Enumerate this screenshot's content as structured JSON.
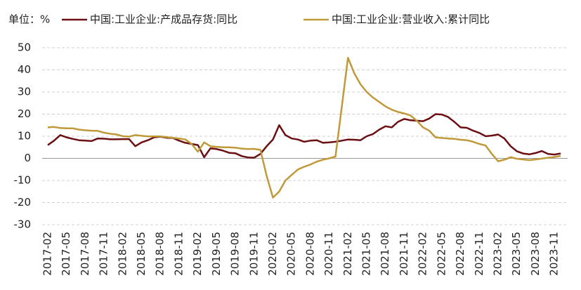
{
  "chart_data": {
    "type": "line",
    "unit_label": "单位：%",
    "categories": [
      "2017-02",
      null,
      null,
      "2017-05",
      null,
      null,
      "2017-08",
      null,
      null,
      "2017-11",
      null,
      null,
      "2018-02",
      null,
      null,
      "2018-05",
      null,
      null,
      "2018-08",
      null,
      null,
      "2018-11",
      null,
      null,
      "2019-02",
      null,
      null,
      "2019-05",
      null,
      null,
      "2019-08",
      null,
      null,
      "2019-11",
      null,
      null,
      "2020-02",
      null,
      null,
      "2020-05",
      null,
      null,
      "2020-08",
      null,
      null,
      "2020-11",
      null,
      null,
      "2021-02",
      null,
      null,
      "2021-05",
      null,
      null,
      "2021-08",
      null,
      null,
      "2021-11",
      null,
      null,
      "2022-02",
      null,
      null,
      "2022-05",
      null,
      null,
      "2022-08",
      null,
      null,
      "2022-11",
      null,
      null,
      "2023-02",
      null,
      null,
      "2023-05",
      null,
      null,
      "2023-08",
      null,
      null,
      "2023-11",
      null
    ],
    "series": [
      {
        "name": "中国:工业企业:产成品存货:同比",
        "color": "#6b0f12",
        "values": [
          6,
          8,
          10.5,
          9.5,
          8.8,
          8.2,
          8.0,
          7.8,
          9,
          8.9,
          8.6,
          8.6,
          8.7,
          8.7,
          5.5,
          7.2,
          8.2,
          9.5,
          9.8,
          9.3,
          9.2,
          8.0,
          7.0,
          6.5,
          6.0,
          0.5,
          4.5,
          4.2,
          3.5,
          2.5,
          2.3,
          1.0,
          0.4,
          0.3,
          2.0,
          5.5,
          8.5,
          15,
          10.5,
          9,
          8.5,
          7.5,
          8,
          8.2,
          7,
          7.2,
          7.5,
          8,
          8.5,
          8.4,
          8.2,
          10,
          11,
          13,
          14.5,
          14,
          16.5,
          17.8,
          17.2,
          17,
          16.8,
          18,
          20,
          19.8,
          18.7,
          16.5,
          14,
          13.8,
          12.5,
          11.5,
          10,
          10.3,
          10.8,
          9,
          5.5,
          3.2,
          2.2,
          1.8,
          2.4,
          3.3,
          2.0,
          1.7,
          2.2
        ]
      },
      {
        "name": "中国:工业企业:营业收入:累计同比",
        "color": "#c09a3a",
        "values": [
          14,
          14.2,
          13.7,
          13.6,
          13.6,
          13,
          12.7,
          12.5,
          12.4,
          11.6,
          11.1,
          10.8,
          10,
          9.8,
          10.5,
          10.2,
          9.9,
          9.9,
          9.9,
          9.6,
          9.3,
          9.0,
          8.5,
          6.5,
          3,
          7.2,
          5.5,
          5.2,
          5.0,
          5.0,
          4.8,
          4.4,
          4.2,
          4.3,
          3.8,
          -8,
          -17.7,
          -15,
          -10,
          -7.5,
          -5,
          -3.8,
          -2.8,
          -1.5,
          -0.6,
          0,
          0.8,
          23,
          45.5,
          38.5,
          33.5,
          30,
          27.5,
          25.5,
          23.5,
          22,
          21,
          20.3,
          19.4,
          17,
          14,
          12.5,
          9.5,
          9.2,
          9.0,
          8.8,
          8.4,
          8.2,
          7.5,
          6.5,
          5.8,
          2,
          -1.3,
          -0.6,
          0.5,
          -0.2,
          -0.5,
          -0.8,
          -0.5,
          -0.1,
          0.3,
          0.6,
          1.1
        ]
      }
    ],
    "ylim": [
      -30,
      50
    ],
    "yticks": [
      -30,
      -20,
      -10,
      0,
      10,
      20,
      30,
      40,
      50
    ],
    "grid": true
  }
}
